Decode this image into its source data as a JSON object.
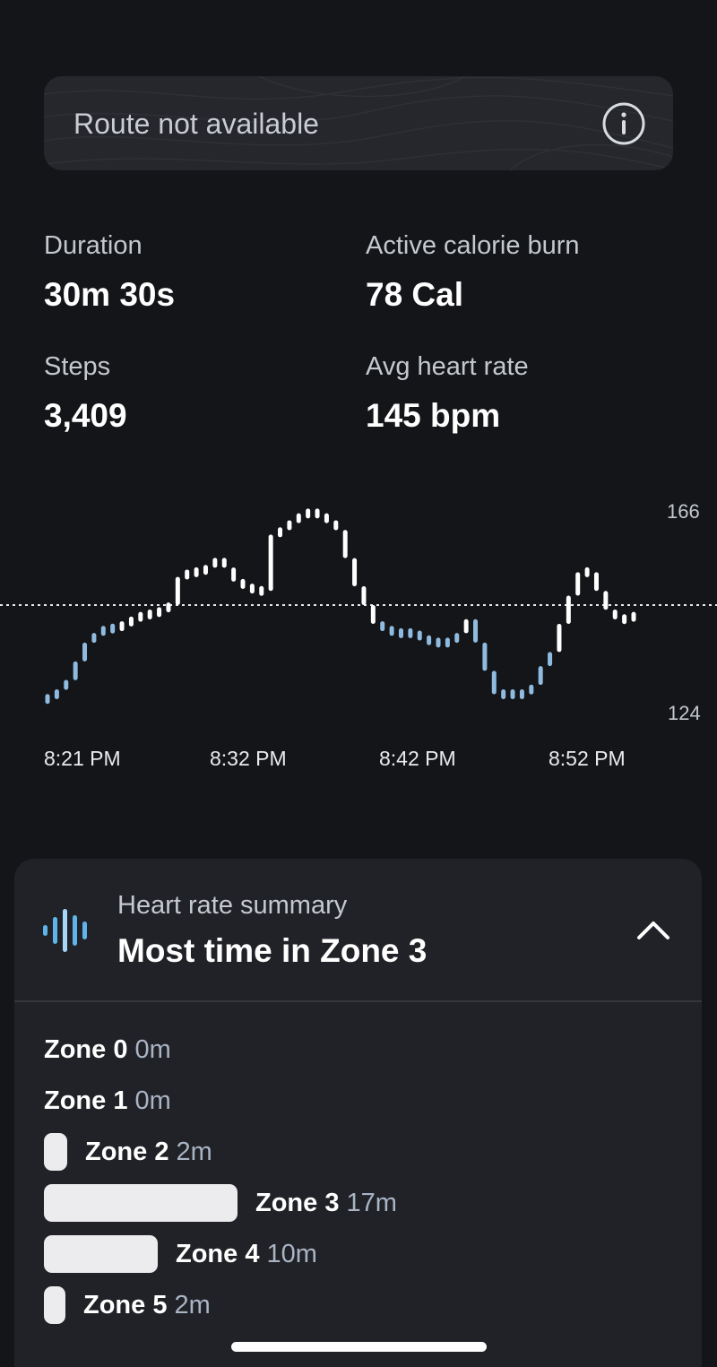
{
  "route": {
    "message": "Route not available"
  },
  "stats": [
    {
      "label": "Duration",
      "value": "30m 30s"
    },
    {
      "label": "Active calorie burn",
      "value": "78 Cal"
    },
    {
      "label": "Steps",
      "value": "3,409"
    },
    {
      "label": "Avg heart rate",
      "value": "145 bpm"
    }
  ],
  "chart_data": {
    "type": "bar",
    "title": "",
    "y_ticks": [
      "166",
      "124"
    ],
    "x_ticks": [
      "8:21 PM",
      "8:32 PM",
      "8:42 PM",
      "8:52 PM"
    ],
    "reference_line": 145,
    "ylim": [
      124,
      166
    ],
    "unit": "bpm",
    "colors": {
      "high": "#ffffff",
      "low": "#8fbbe0"
    },
    "values": [
      125,
      127,
      129,
      133,
      137,
      139,
      140,
      140,
      141,
      142,
      143,
      143,
      144,
      145,
      151,
      152,
      152,
      153,
      155,
      153,
      150,
      149,
      148,
      148,
      160,
      161,
      163,
      164,
      165,
      164,
      163,
      161,
      155,
      149,
      145,
      141,
      140,
      139,
      139,
      139,
      138,
      137,
      137,
      137,
      139,
      142,
      137,
      131,
      126,
      126,
      126,
      126,
      128,
      132,
      135,
      141,
      147,
      152,
      152,
      148,
      144,
      142,
      142,
      143
    ]
  },
  "summary": {
    "label": "Heart rate summary",
    "title": "Most time in Zone 3",
    "zones": [
      {
        "name": "Zone 0",
        "time": "0m",
        "fraction": 0
      },
      {
        "name": "Zone 1",
        "time": "0m",
        "fraction": 0
      },
      {
        "name": "Zone 2",
        "time": "2m",
        "fraction": 0.12
      },
      {
        "name": "Zone 3",
        "time": "17m",
        "fraction": 1.0
      },
      {
        "name": "Zone 4",
        "time": "10m",
        "fraction": 0.59
      },
      {
        "name": "Zone 5",
        "time": "2m",
        "fraction": 0.11
      }
    ]
  }
}
